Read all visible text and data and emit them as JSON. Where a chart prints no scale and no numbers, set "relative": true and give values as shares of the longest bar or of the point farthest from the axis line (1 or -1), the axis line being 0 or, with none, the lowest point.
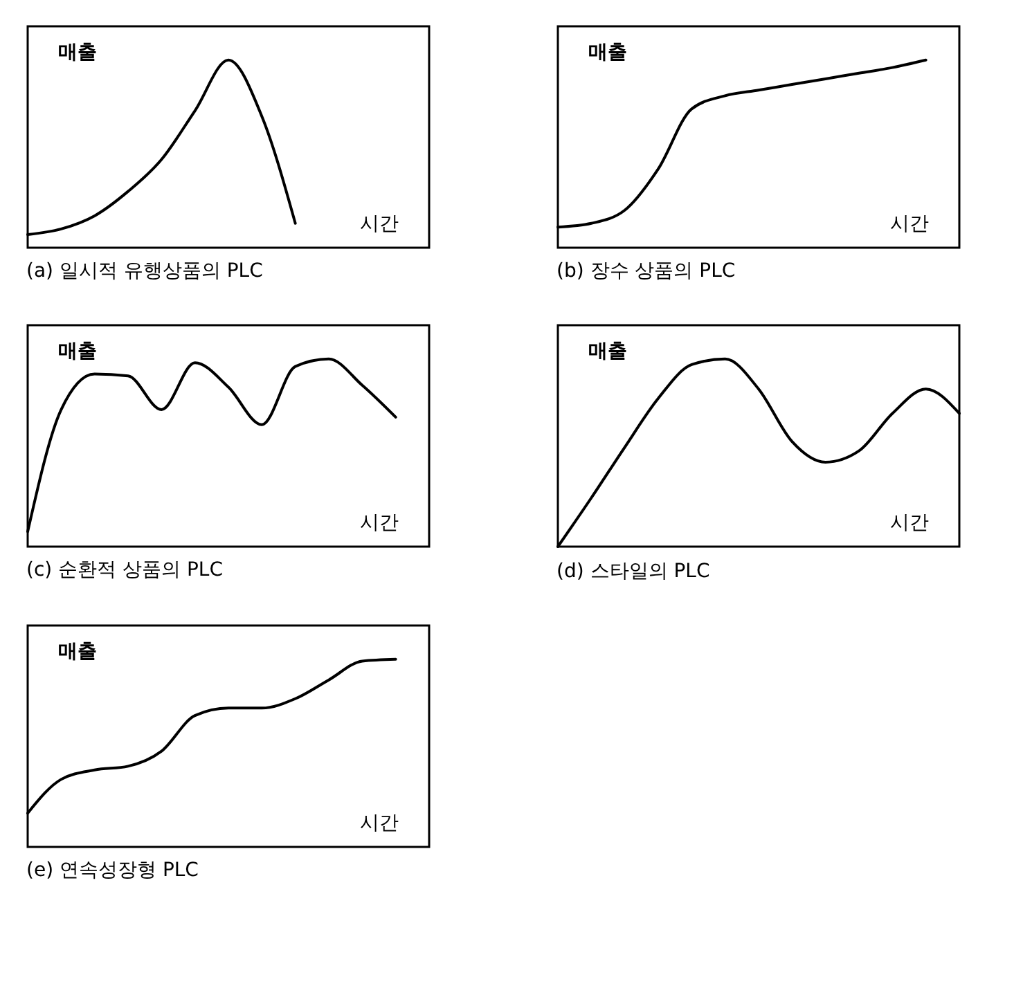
{
  "chart_data": [
    {
      "type": "line",
      "title": "(a) 일시적 유행상품의 PLC",
      "ylabel": "매출",
      "xlabel": "시간",
      "relative": true,
      "color": "#000000",
      "categories": [
        null,
        null,
        null,
        null,
        null,
        null,
        null,
        null,
        null,
        null,
        null,
        null,
        null
      ],
      "values": [
        0.07,
        0.1,
        0.17,
        0.3,
        0.47,
        0.73,
        1,
        0.7,
        0.13,
        null,
        null,
        null,
        null
      ]
    },
    {
      "type": "line",
      "title": "(b) 장수 상품의 PLC",
      "ylabel": "매출",
      "xlabel": "시간",
      "relative": true,
      "color": "#000000",
      "categories": [
        null,
        null,
        null,
        null,
        null,
        null,
        null,
        null,
        null,
        null,
        null,
        null,
        null
      ],
      "values": [
        0.11,
        0.13,
        0.2,
        0.42,
        0.74,
        0.81,
        0.84,
        0.87,
        0.9,
        0.93,
        0.96,
        1,
        null
      ]
    },
    {
      "type": "line",
      "title": "(c) 순환적 상품의 PLC",
      "ylabel": "매출",
      "xlabel": "시간",
      "relative": true,
      "color": "#000000",
      "categories": [
        null,
        null,
        null,
        null,
        null,
        null,
        null,
        null,
        null,
        null,
        null,
        null,
        null
      ],
      "values": [
        0.08,
        0.73,
        0.92,
        0.91,
        0.73,
        0.98,
        0.85,
        0.65,
        0.96,
        1,
        0.86,
        0.69,
        null
      ]
    },
    {
      "type": "line",
      "title": "(d) 스타일의 PLC",
      "ylabel": "매출",
      "xlabel": "시간",
      "relative": true,
      "color": "#000000",
      "categories": [
        null,
        null,
        null,
        null,
        null,
        null,
        null,
        null,
        null,
        null,
        null,
        null,
        null
      ],
      "values": [
        0,
        0.26,
        0.53,
        0.79,
        0.97,
        1,
        0.84,
        0.56,
        0.45,
        0.51,
        0.71,
        0.84,
        0.71
      ]
    },
    {
      "type": "line",
      "title": "(e) 연속성장형 PLC",
      "ylabel": "매출",
      "xlabel": "시간",
      "relative": true,
      "color": "#000000",
      "categories": [
        null,
        null,
        null,
        null,
        null,
        null,
        null,
        null,
        null,
        null,
        null,
        null,
        null
      ],
      "values": [
        0.18,
        0.36,
        0.41,
        0.43,
        0.51,
        0.7,
        0.74,
        0.74,
        0.79,
        0.89,
        0.99,
        1,
        null
      ]
    }
  ]
}
